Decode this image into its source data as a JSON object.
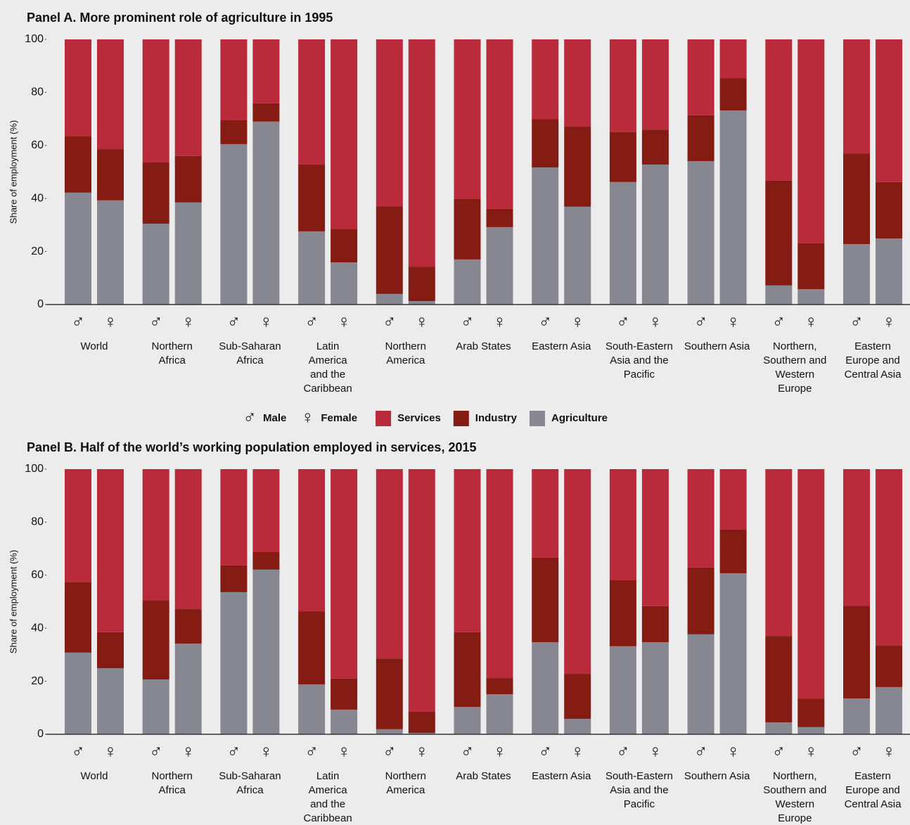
{
  "chart_data": [
    {
      "type": "stacked_bar",
      "title": "Panel A. More prominent role of agriculture in 1995",
      "ylabel": "Share of employment (%)",
      "categories": [
        "World",
        "Northern Africa",
        "Sub-Saharan Africa",
        "Latin America and the Caribbean",
        "Northern America",
        "Arab States",
        "Eastern Asia",
        "South-Eastern Asia and the Pacific",
        "Southern Asia",
        "Northern, Southern and Western Europe",
        "Eastern Europe and Central Asia"
      ],
      "ylim": [
        0,
        100
      ],
      "yticks": [
        0,
        20,
        40,
        60,
        80,
        100
      ],
      "series": [
        {
          "name": "Services",
          "color": "#b92a3b",
          "values": [
            [
              36.6,
              41.4
            ],
            [
              46.4,
              44.0
            ],
            [
              30.5,
              24.1
            ],
            [
              47.2,
              71.4
            ],
            [
              62.9,
              85.7
            ],
            [
              60.2,
              63.9
            ],
            [
              30.0,
              32.9
            ],
            [
              35.0,
              34.0
            ],
            [
              28.6,
              14.6
            ],
            [
              53.3,
              76.9
            ],
            [
              43.0,
              53.8
            ]
          ]
        },
        {
          "name": "Industry",
          "color": "#851c14",
          "values": [
            [
              21.2,
              19.3
            ],
            [
              23.1,
              17.5
            ],
            [
              9.0,
              6.9
            ],
            [
              25.2,
              12.7
            ],
            [
              33.1,
              13.0
            ],
            [
              22.8,
              6.9
            ],
            [
              18.3,
              30.2
            ],
            [
              18.8,
              13.2
            ],
            [
              17.3,
              12.2
            ],
            [
              39.5,
              17.3
            ],
            [
              34.2,
              21.3
            ]
          ]
        },
        {
          "name": "Agriculture",
          "color": "#878792",
          "values": [
            [
              42.2,
              39.3
            ],
            [
              30.5,
              38.5
            ],
            [
              60.5,
              69.0
            ],
            [
              27.6,
              15.9
            ],
            [
              4.0,
              1.3
            ],
            [
              17.0,
              29.2
            ],
            [
              51.7,
              36.9
            ],
            [
              46.2,
              52.8
            ],
            [
              54.1,
              73.2
            ],
            [
              7.2,
              5.8
            ],
            [
              22.8,
              24.9
            ]
          ]
        }
      ]
    },
    {
      "type": "stacked_bar",
      "title": "Panel B. Half of the world’s working population employed in services, 2015",
      "ylabel": "Share of employment (%)",
      "categories": [
        "World",
        "Northern Africa",
        "Sub-Saharan Africa",
        "Latin America and the Caribbean",
        "Northern America",
        "Arab States",
        "Eastern Asia",
        "South-Eastern Asia and the Pacific",
        "Southern Asia",
        "Northern, Southern and Western Europe",
        "Eastern Europe and Central Asia"
      ],
      "ylim": [
        0,
        100
      ],
      "yticks": [
        0,
        20,
        40,
        60,
        80,
        100
      ],
      "series": [
        {
          "name": "Services",
          "color": "#b92a3b",
          "values": [
            [
              42.7,
              61.5
            ],
            [
              49.6,
              52.8
            ],
            [
              36.3,
              31.3
            ],
            [
              53.6,
              79.0
            ],
            [
              71.4,
              91.5
            ],
            [
              61.5,
              78.8
            ],
            [
              33.4,
              77.2
            ],
            [
              41.9,
              51.7
            ],
            [
              37.1,
              22.8
            ],
            [
              62.9,
              86.5
            ],
            [
              51.5,
              66.6
            ]
          ]
        },
        {
          "name": "Industry",
          "color": "#851c14",
          "values": [
            [
              26.5,
              13.6
            ],
            [
              29.7,
              13.0
            ],
            [
              10.1,
              6.6
            ],
            [
              27.6,
              11.7
            ],
            [
              26.7,
              8.0
            ],
            [
              28.2,
              6.1
            ],
            [
              31.9,
              17.0
            ],
            [
              24.9,
              13.6
            ],
            [
              25.2,
              16.5
            ],
            [
              32.6,
              10.8
            ],
            [
              35.0,
              15.6
            ]
          ]
        },
        {
          "name": "Agriculture",
          "color": "#878792",
          "values": [
            [
              30.8,
              24.9
            ],
            [
              20.7,
              34.2
            ],
            [
              53.6,
              62.1
            ],
            [
              18.8,
              9.3
            ],
            [
              1.9,
              0.5
            ],
            [
              10.3,
              15.1
            ],
            [
              34.7,
              5.8
            ],
            [
              33.2,
              34.7
            ],
            [
              37.7,
              60.7
            ],
            [
              4.5,
              2.7
            ],
            [
              13.5,
              17.8
            ]
          ]
        }
      ]
    }
  ],
  "groups": [
    {
      "symbol": "♂",
      "name": "Male"
    },
    {
      "symbol": "♀",
      "name": "Female"
    }
  ]
}
